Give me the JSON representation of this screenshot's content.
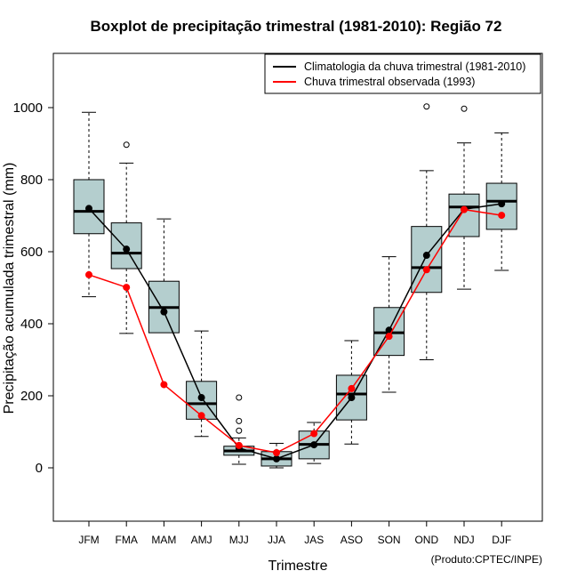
{
  "chart_data": {
    "type": "boxplot",
    "title": "Boxplot de precipitação trimestral (1981-2010): Região 72",
    "xlabel": "Trimestre",
    "ylabel": "Precipitação acumulada trimestral (mm)",
    "ylim": [
      -150,
      1150
    ],
    "yticks": [
      0,
      200,
      400,
      600,
      800,
      1000
    ],
    "credit": "(Produto:CPTEC/INPE)",
    "categories": [
      "JFM",
      "FMA",
      "MAM",
      "AMJ",
      "MJJ",
      "JJA",
      "JAS",
      "ASO",
      "SON",
      "OND",
      "NDJ",
      "DJF"
    ],
    "boxes": [
      {
        "min": 475,
        "q1": 650,
        "median": 712,
        "q3": 800,
        "max": 987,
        "outliers": []
      },
      {
        "min": 373,
        "q1": 553,
        "median": 596,
        "q3": 680,
        "max": 846,
        "outliers": [
          897
        ]
      },
      {
        "min": null,
        "q1": 375,
        "median": 445,
        "q3": 518,
        "max": 691,
        "outliers": []
      },
      {
        "min": 87,
        "q1": 135,
        "median": 178,
        "q3": 240,
        "max": 380,
        "outliers": []
      },
      {
        "min": 10,
        "q1": 35,
        "median": 47,
        "q3": 60,
        "max": 83,
        "outliers": [
          103,
          130,
          195
        ]
      },
      {
        "min": 0,
        "q1": 5,
        "median": 25,
        "q3": 45,
        "max": 68,
        "outliers": []
      },
      {
        "min": 12,
        "q1": 25,
        "median": 65,
        "q3": 102,
        "max": 126,
        "outliers": []
      },
      {
        "min": 66,
        "q1": 133,
        "median": 205,
        "q3": 257,
        "max": 353,
        "outliers": []
      },
      {
        "min": 210,
        "q1": 312,
        "median": 375,
        "q3": 445,
        "max": 586,
        "outliers": []
      },
      {
        "min": 300,
        "q1": 487,
        "median": 556,
        "q3": 670,
        "max": 825,
        "outliers": [
          1003
        ]
      },
      {
        "min": 496,
        "q1": 642,
        "median": 724,
        "q3": 760,
        "max": 902,
        "outliers": [
          997
        ]
      },
      {
        "min": 548,
        "q1": 662,
        "median": 740,
        "q3": 790,
        "max": 930,
        "outliers": []
      }
    ],
    "series": [
      {
        "name": "Climatologia da chuva trimestral (1981-2010)",
        "color": "#000000",
        "values": [
          720,
          607,
          433,
          195,
          55,
          25,
          64,
          195,
          382,
          590,
          718,
          733
        ]
      },
      {
        "name": "Chuva trimestral observada (1993)",
        "color": "#ff0000",
        "values": [
          536,
          501,
          231,
          145,
          62,
          42,
          95,
          220,
          365,
          550,
          717,
          701
        ]
      }
    ],
    "legend": "top-right",
    "box_color": "#b4cece"
  }
}
